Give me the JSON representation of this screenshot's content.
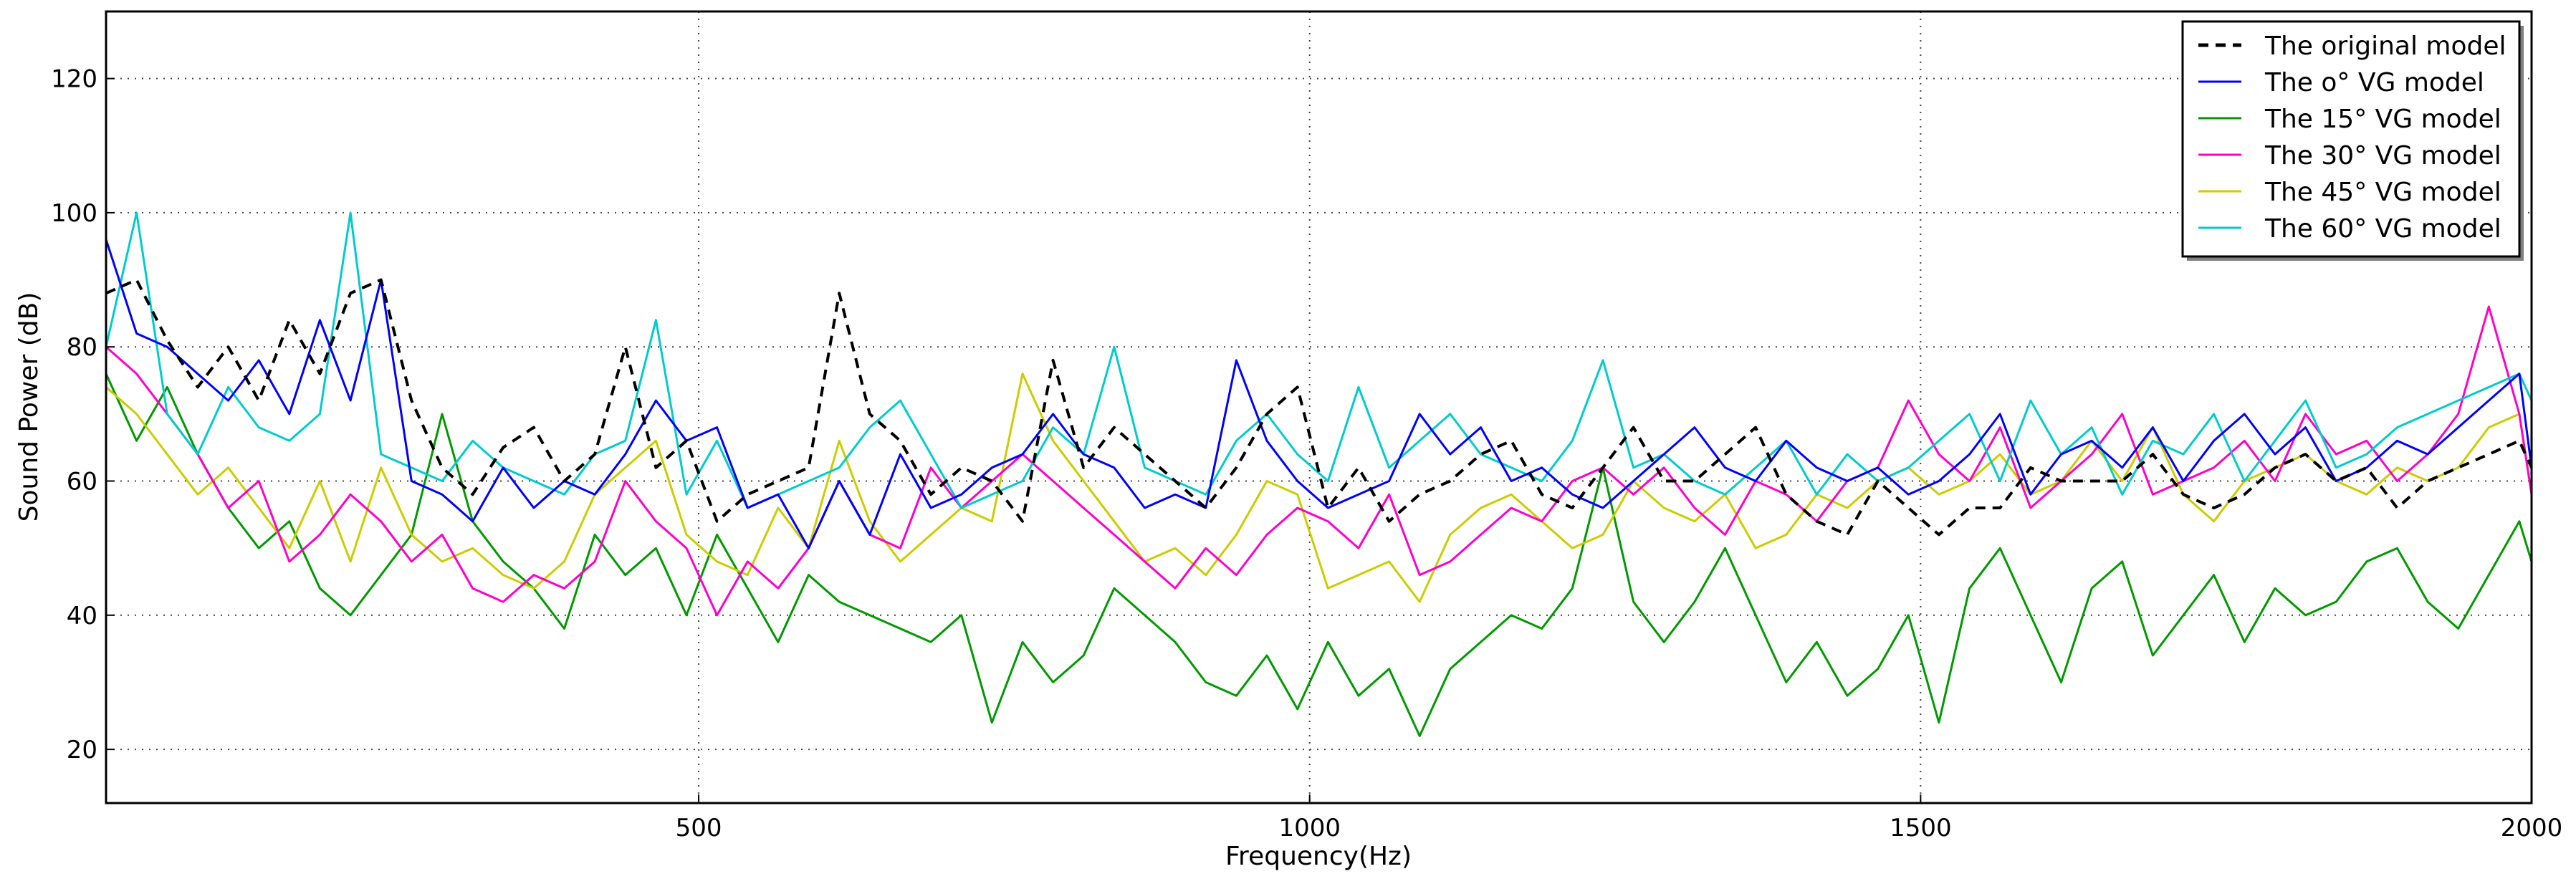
{
  "chart_data": {
    "type": "line",
    "xlabel": "Frequency(Hz)",
    "ylabel": "Sound Power (dB)",
    "xlim": [
      15,
      2000
    ],
    "ylim": [
      12,
      130
    ],
    "xticks": [
      500,
      1000,
      1500,
      2000
    ],
    "yticks": [
      20,
      40,
      60,
      80,
      100,
      120
    ],
    "xtick_labels": [
      "500",
      "1000",
      "1500",
      "2000"
    ],
    "ytick_labels": [
      "20",
      "40",
      "60",
      "80",
      "100",
      "120"
    ],
    "grid": true,
    "legend_position": "top-right",
    "x": [
      15,
      40,
      65,
      90,
      115,
      140,
      165,
      190,
      215,
      240,
      265,
      290,
      315,
      340,
      365,
      390,
      415,
      440,
      465,
      490,
      515,
      540,
      565,
      590,
      615,
      640,
      665,
      690,
      715,
      740,
      765,
      790,
      815,
      840,
      865,
      890,
      915,
      940,
      965,
      990,
      1015,
      1040,
      1065,
      1090,
      1115,
      1140,
      1165,
      1190,
      1215,
      1240,
      1265,
      1290,
      1315,
      1340,
      1365,
      1390,
      1415,
      1440,
      1465,
      1490,
      1515,
      1540,
      1565,
      1590,
      1615,
      1640,
      1665,
      1690,
      1715,
      1740,
      1765,
      1790,
      1815,
      1840,
      1865,
      1890,
      1915,
      1940,
      1965,
      1990,
      2000
    ],
    "series": [
      {
        "name": "The original model",
        "color": "#000000",
        "dash": true,
        "values": [
          88,
          90,
          81,
          74,
          80,
          72,
          84,
          76,
          88,
          90,
          72,
          62,
          58,
          65,
          68,
          60,
          64,
          80,
          62,
          66,
          54,
          58,
          60,
          62,
          88,
          70,
          66,
          58,
          62,
          60,
          54,
          78,
          62,
          68,
          64,
          60,
          56,
          62,
          70,
          74,
          56,
          62,
          54,
          58,
          60,
          64,
          66,
          58,
          56,
          62,
          68,
          60,
          60,
          64,
          68,
          58,
          54,
          52,
          60,
          56,
          52,
          56,
          56,
          62,
          60,
          60,
          60,
          64,
          58,
          56,
          58,
          62,
          64,
          60,
          62,
          56,
          60,
          62,
          64,
          66,
          62
        ]
      },
      {
        "name": "The o° VG model",
        "color": "#0000ff",
        "dash": false,
        "values": [
          96,
          82,
          80,
          76,
          72,
          78,
          70,
          84,
          72,
          90,
          60,
          58,
          54,
          62,
          56,
          60,
          58,
          64,
          72,
          66,
          68,
          56,
          58,
          50,
          60,
          52,
          64,
          56,
          58,
          62,
          64,
          70,
          64,
          62,
          56,
          58,
          56,
          78,
          66,
          60,
          56,
          58,
          60,
          70,
          64,
          68,
          60,
          62,
          58,
          56,
          60,
          64,
          68,
          62,
          60,
          66,
          62,
          60,
          62,
          58,
          60,
          64,
          70,
          58,
          64,
          66,
          62,
          68,
          60,
          66,
          70,
          64,
          68,
          60,
          62,
          66,
          64,
          68,
          72,
          76,
          62
        ]
      },
      {
        "name": "The 15° VG model",
        "color": "#009900",
        "dash": false,
        "values": [
          76,
          66,
          74,
          64,
          56,
          50,
          54,
          44,
          40,
          46,
          52,
          70,
          54,
          48,
          44,
          38,
          52,
          46,
          50,
          40,
          52,
          44,
          36,
          46,
          42,
          40,
          38,
          36,
          40,
          24,
          36,
          30,
          34,
          44,
          40,
          36,
          30,
          28,
          34,
          26,
          36,
          28,
          32,
          22,
          32,
          36,
          40,
          38,
          44,
          62,
          42,
          36,
          42,
          50,
          40,
          30,
          36,
          28,
          32,
          40,
          24,
          44,
          50,
          40,
          30,
          44,
          48,
          34,
          40,
          46,
          36,
          44,
          40,
          42,
          48,
          50,
          42,
          38,
          46,
          54,
          48
        ]
      },
      {
        "name": "The 30° VG model",
        "color": "#ff00cc",
        "dash": false,
        "values": [
          80,
          76,
          70,
          64,
          56,
          60,
          48,
          52,
          58,
          54,
          48,
          52,
          44,
          42,
          46,
          44,
          48,
          60,
          54,
          50,
          40,
          48,
          44,
          50,
          60,
          52,
          50,
          62,
          56,
          60,
          64,
          60,
          56,
          52,
          48,
          44,
          50,
          46,
          52,
          56,
          54,
          50,
          58,
          46,
          48,
          52,
          56,
          54,
          60,
          62,
          58,
          62,
          56,
          52,
          60,
          58,
          54,
          60,
          62,
          72,
          64,
          60,
          68,
          56,
          60,
          64,
          70,
          58,
          60,
          62,
          66,
          60,
          70,
          64,
          66,
          60,
          64,
          70,
          86,
          70,
          58
        ]
      },
      {
        "name": "The 45° VG model",
        "color": "#cccc00",
        "dash": false,
        "values": [
          74,
          70,
          64,
          58,
          62,
          56,
          50,
          60,
          48,
          62,
          52,
          48,
          50,
          46,
          44,
          48,
          58,
          62,
          66,
          52,
          48,
          46,
          56,
          50,
          66,
          54,
          48,
          52,
          56,
          54,
          76,
          66,
          60,
          54,
          48,
          50,
          46,
          52,
          60,
          58,
          44,
          46,
          48,
          42,
          52,
          56,
          58,
          54,
          50,
          52,
          60,
          56,
          54,
          58,
          50,
          52,
          58,
          56,
          60,
          62,
          58,
          60,
          64,
          58,
          60,
          66,
          60,
          68,
          58,
          54,
          60,
          62,
          64,
          60,
          58,
          62,
          60,
          62,
          68,
          70,
          58
        ]
      },
      {
        "name": "The 60° VG model",
        "color": "#00cccc",
        "dash": false,
        "values": [
          80,
          100,
          70,
          64,
          74,
          68,
          66,
          70,
          100,
          64,
          62,
          60,
          66,
          62,
          60,
          58,
          64,
          66,
          84,
          58,
          66,
          56,
          58,
          60,
          62,
          68,
          72,
          64,
          56,
          58,
          60,
          68,
          64,
          80,
          62,
          60,
          58,
          66,
          70,
          64,
          60,
          74,
          62,
          66,
          70,
          64,
          62,
          60,
          66,
          78,
          62,
          64,
          60,
          58,
          62,
          66,
          58,
          64,
          60,
          62,
          66,
          70,
          60,
          72,
          64,
          68,
          58,
          66,
          64,
          70,
          60,
          66,
          72,
          62,
          64,
          68,
          70,
          72,
          74,
          76,
          72
        ]
      }
    ]
  }
}
